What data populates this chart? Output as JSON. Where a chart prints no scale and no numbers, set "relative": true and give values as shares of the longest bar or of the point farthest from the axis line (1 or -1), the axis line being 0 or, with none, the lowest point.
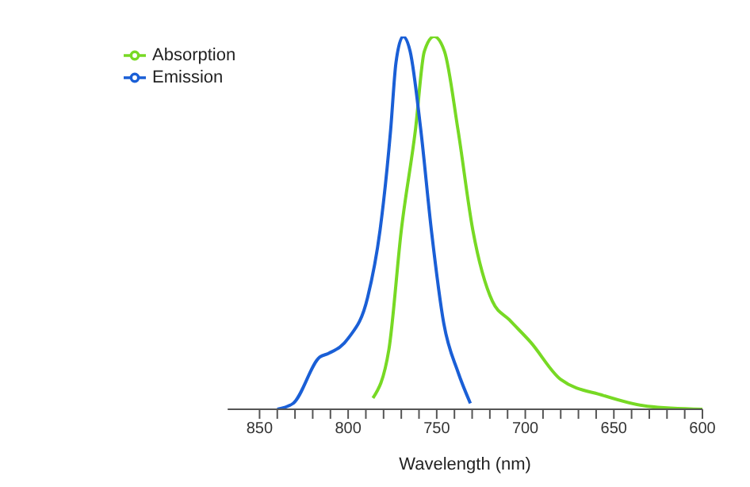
{
  "chart_data": {
    "type": "line",
    "relative": true,
    "xlabel": "Wavelength (nm)",
    "xlim": [
      868,
      600
    ],
    "xticks": [
      850,
      {
        "value": 840,
        "label": null
      },
      {
        "value": 830,
        "label": null
      },
      {
        "value": 820,
        "label": null
      },
      {
        "value": 810,
        "label": null
      },
      800,
      {
        "value": 790,
        "label": null
      },
      {
        "value": 780,
        "label": null
      },
      {
        "value": 770,
        "label": null
      },
      {
        "value": 760,
        "label": null
      },
      750,
      {
        "value": 740,
        "label": null
      },
      {
        "value": 730,
        "label": null
      },
      {
        "value": 720,
        "label": null
      },
      {
        "value": 710,
        "label": null
      },
      700,
      {
        "value": 690,
        "label": null
      },
      {
        "value": 680,
        "label": null
      },
      {
        "value": 670,
        "label": null
      },
      {
        "value": 660,
        "label": null
      },
      650,
      {
        "value": 640,
        "label": null
      },
      {
        "value": 630,
        "label": null
      },
      {
        "value": 620,
        "label": null
      },
      {
        "value": 610,
        "label": null
      },
      600
    ],
    "legend": "top left",
    "grid": false,
    "marker": "none",
    "line_style": "solid",
    "series": [
      {
        "name": "Absorption",
        "color": "#77d924",
        "x": [
          786,
          777,
          770,
          762,
          757,
          751.5,
          745.6,
          738,
          729.6,
          718.6,
          709,
          697,
          680,
          656,
          631,
          600
        ],
        "values": [
          0.03,
          0.16,
          0.48,
          0.75,
          0.96,
          1,
          0.96,
          0.75,
          0.48,
          0.29,
          0.24,
          0.18,
          0.08,
          0.037,
          0.008,
          0
        ]
      },
      {
        "name": "Emission",
        "color": "#1a5fd6",
        "x": [
          840,
          831,
          816,
          811,
          800,
          789,
          782,
          776,
          773,
          769,
          765,
          759,
          753,
          746,
          738,
          731
        ],
        "values": [
          0,
          0.016,
          0.14,
          0.15,
          0.19,
          0.3,
          0.48,
          0.75,
          0.93,
          1,
          0.96,
          0.75,
          0.48,
          0.23,
          0.1,
          0.016
        ]
      }
    ]
  }
}
